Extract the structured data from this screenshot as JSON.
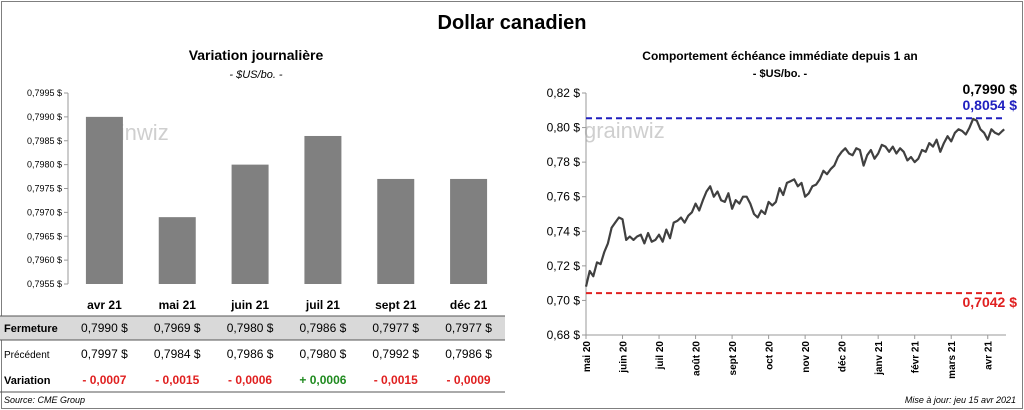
{
  "title": "Dollar canadien",
  "source": "Source: CME Group",
  "updated": "Mise à jour: jeu 15 avr 2021",
  "watermark": "grainwiz",
  "colors": {
    "bar": "#808080",
    "line": "#404040",
    "high": "#1f1fbf",
    "low": "#e02020",
    "neg": "#e02020",
    "pos": "#1f8a1f"
  },
  "chart_data": [
    {
      "type": "bar",
      "title": "Variation  journalière",
      "subtitle": "- $US/bo. -",
      "categories": [
        "avr 21",
        "mai 21",
        "juin 21",
        "juil 21",
        "sept 21",
        "déc 21"
      ],
      "values": [
        0.799,
        0.7969,
        0.798,
        0.7986,
        0.7977,
        0.7977
      ],
      "ylim": [
        0.7955,
        0.7995
      ],
      "yticks": [
        "0,7955 $",
        "0,7960 $",
        "0,7965 $",
        "0,7970 $",
        "0,7975 $",
        "0,7980 $",
        "0,7985 $",
        "0,7990 $",
        "0,7995 $"
      ],
      "table": {
        "rows": [
          {
            "label": "Fermeture",
            "cells": [
              "0,7990  $",
              "0,7969  $",
              "0,7980  $",
              "0,7986  $",
              "0,7977  $",
              "0,7977  $"
            ]
          },
          {
            "label": "Précédent",
            "cells": [
              "0,7997  $",
              "0,7984  $",
              "0,7986  $",
              "0,7980  $",
              "0,7992  $",
              "0,7986  $"
            ]
          },
          {
            "label": "Variation",
            "cells": [
              "- 0,0007",
              "- 0,0015",
              "- 0,0006",
              "+ 0,0006",
              "- 0,0015",
              "- 0,0009"
            ],
            "signs": [
              "neg",
              "neg",
              "neg",
              "pos",
              "neg",
              "neg"
            ]
          }
        ]
      }
    },
    {
      "type": "line",
      "title": "Comportement échéance immédiate depuis 1 an",
      "subtitle": "- $US/bo. -",
      "ylim": [
        0.68,
        0.82
      ],
      "yticks": [
        "0,68 $",
        "0,70 $",
        "0,72 $",
        "0,74 $",
        "0,76 $",
        "0,78 $",
        "0,80 $",
        "0,82 $"
      ],
      "xticks": [
        "mai 20",
        "juin 20",
        "juil 20",
        "août 20",
        "sept 20",
        "oct 20",
        "nov 20",
        "déc 20",
        "janv 21",
        "févr 21",
        "mars 21",
        "avr 21"
      ],
      "last": 0.799,
      "last_label": "0,7990 $",
      "high": 0.8054,
      "high_label": "0,8054  $",
      "low": 0.7042,
      "low_label": "0,7042  $",
      "x": [
        0,
        0.1,
        0.2,
        0.3,
        0.4,
        0.5,
        0.6,
        0.7,
        0.8,
        0.9,
        1.0,
        1.1,
        1.2,
        1.3,
        1.4,
        1.5,
        1.6,
        1.7,
        1.8,
        1.9,
        2.0,
        2.1,
        2.2,
        2.3,
        2.4,
        2.5,
        2.6,
        2.7,
        2.8,
        2.9,
        3.0,
        3.1,
        3.2,
        3.3,
        3.4,
        3.5,
        3.6,
        3.7,
        3.8,
        3.9,
        4.0,
        4.1,
        4.2,
        4.3,
        4.4,
        4.5,
        4.6,
        4.7,
        4.8,
        4.9,
        5.0,
        5.1,
        5.2,
        5.3,
        5.4,
        5.5,
        5.6,
        5.7,
        5.8,
        5.9,
        6.0,
        6.1,
        6.2,
        6.3,
        6.4,
        6.5,
        6.6,
        6.7,
        6.8,
        6.9,
        7.0,
        7.1,
        7.2,
        7.3,
        7.4,
        7.5,
        7.6,
        7.7,
        7.8,
        7.9,
        8.0,
        8.1,
        8.2,
        8.3,
        8.4,
        8.5,
        8.6,
        8.7,
        8.8,
        8.9,
        9.0,
        9.1,
        9.2,
        9.3,
        9.4,
        9.5,
        9.6,
        9.7,
        9.8,
        9.9,
        10.0,
        10.1,
        10.2,
        10.3,
        10.4,
        10.5,
        10.6,
        10.7,
        10.8,
        10.9,
        11.0,
        11.1,
        11.2,
        11.3,
        11.4,
        11.45
      ],
      "y": [
        0.708,
        0.717,
        0.714,
        0.722,
        0.721,
        0.728,
        0.733,
        0.742,
        0.745,
        0.748,
        0.747,
        0.735,
        0.737,
        0.735,
        0.737,
        0.738,
        0.733,
        0.739,
        0.734,
        0.735,
        0.738,
        0.734,
        0.741,
        0.736,
        0.745,
        0.746,
        0.748,
        0.745,
        0.749,
        0.751,
        0.756,
        0.752,
        0.758,
        0.763,
        0.766,
        0.76,
        0.763,
        0.758,
        0.757,
        0.762,
        0.753,
        0.758,
        0.756,
        0.76,
        0.76,
        0.756,
        0.75,
        0.748,
        0.752,
        0.75,
        0.757,
        0.755,
        0.757,
        0.765,
        0.761,
        0.768,
        0.769,
        0.77,
        0.766,
        0.768,
        0.76,
        0.762,
        0.766,
        0.767,
        0.77,
        0.775,
        0.773,
        0.776,
        0.778,
        0.783,
        0.786,
        0.788,
        0.785,
        0.784,
        0.788,
        0.787,
        0.778,
        0.784,
        0.787,
        0.782,
        0.785,
        0.79,
        0.789,
        0.786,
        0.789,
        0.785,
        0.788,
        0.786,
        0.781,
        0.783,
        0.78,
        0.782,
        0.787,
        0.786,
        0.791,
        0.789,
        0.793,
        0.786,
        0.791,
        0.795,
        0.792,
        0.797,
        0.799,
        0.798,
        0.796,
        0.8,
        0.805,
        0.804,
        0.799,
        0.797,
        0.793,
        0.799,
        0.797,
        0.796,
        0.798,
        0.799
      ]
    }
  ]
}
